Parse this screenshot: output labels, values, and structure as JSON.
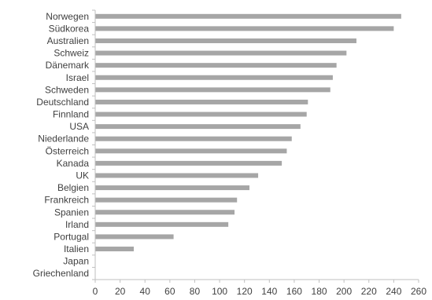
{
  "chart_data": {
    "type": "bar",
    "orientation": "horizontal",
    "title": "",
    "xlabel": "",
    "ylabel": "",
    "categories": [
      "Norwegen",
      "Südkorea",
      "Australien",
      "Schweiz",
      "Dänemark",
      "Israel",
      "Schweden",
      "Deutschland",
      "Finnland",
      "USA",
      "Niederlande",
      "Österreich",
      "Kanada",
      "UK",
      "Belgien",
      "Frankreich",
      "Spanien",
      "Irland",
      "Portugal",
      "Italien",
      "Japan",
      "Griechenland"
    ],
    "values": [
      246,
      240,
      210,
      202,
      194,
      191,
      189,
      171,
      170,
      165,
      158,
      154,
      150,
      131,
      124,
      114,
      112,
      107,
      63,
      31,
      0,
      0
    ],
    "xlim": [
      0,
      260
    ],
    "xticks": [
      0,
      20,
      40,
      60,
      80,
      100,
      120,
      140,
      160,
      180,
      200,
      220,
      240,
      260
    ],
    "grid": false,
    "legend": "none",
    "bar_color": "#a6a6a6",
    "axis_color": "#bfbfbf",
    "text_color": "#404040"
  }
}
